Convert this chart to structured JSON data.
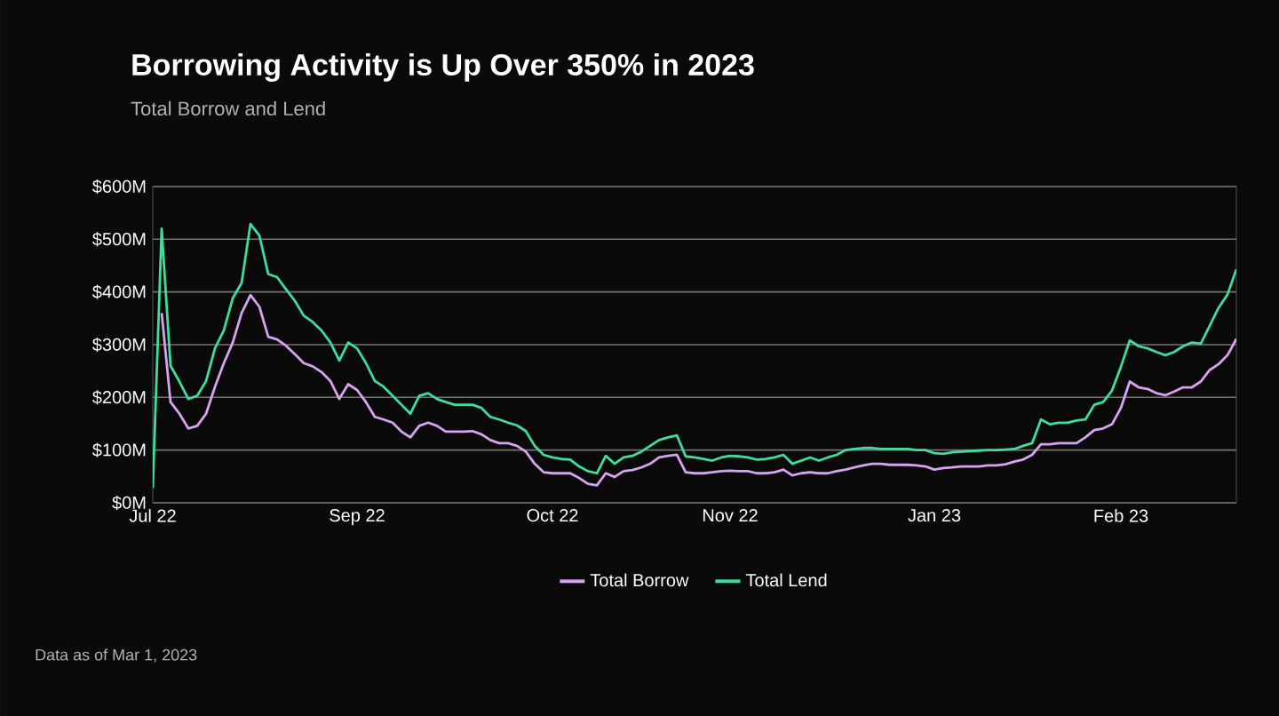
{
  "chart_data": {
    "type": "line",
    "title": "Borrowing Activity is Up Over 350% in 2023",
    "subtitle": "Total Borrow and Lend",
    "categories": [
      "Jul 22",
      null,
      null,
      null,
      null,
      null,
      null,
      null,
      null,
      null,
      null,
      null,
      null,
      null,
      null,
      null,
      null,
      null,
      null,
      null,
      null,
      null,
      null,
      "Sep 22",
      null,
      null,
      null,
      null,
      null,
      null,
      null,
      null,
      null,
      null,
      null,
      null,
      null,
      null,
      null,
      null,
      null,
      null,
      null,
      null,
      null,
      "Oct 22",
      null,
      null,
      null,
      null,
      null,
      null,
      null,
      null,
      null,
      null,
      null,
      null,
      null,
      null,
      null,
      null,
      null,
      null,
      null,
      "Nov 22",
      null,
      null,
      null,
      null,
      null,
      null,
      null,
      null,
      null,
      null,
      null,
      null,
      null,
      null,
      null,
      null,
      null,
      null,
      null,
      null,
      null,
      null,
      "Jan 23",
      null,
      null,
      null,
      null,
      null,
      null,
      null,
      null,
      null,
      null,
      null,
      null,
      null,
      null,
      null,
      null,
      null,
      null,
      null,
      null,
      "Feb 23",
      null,
      null,
      null,
      null,
      null,
      null,
      null,
      null,
      null,
      null,
      null,
      null,
      null
    ],
    "series": [
      {
        "name": "Total Borrow",
        "color": "#d7a3f0",
        "values": [
          null,
          360,
          191,
          169,
          141,
          146,
          169,
          220,
          265,
          304,
          360,
          394,
          372,
          315,
          310,
          298,
          282,
          265,
          259,
          248,
          231,
          197,
          225,
          214,
          191,
          163,
          158,
          152,
          135,
          124,
          146,
          152,
          146,
          135,
          135,
          135,
          136,
          130,
          119,
          113,
          113,
          108,
          97,
          74,
          58,
          56,
          56,
          56,
          47,
          36,
          33,
          56,
          49,
          60,
          62,
          67,
          74,
          86,
          89,
          91,
          58,
          56,
          56,
          58,
          60,
          61,
          60,
          60,
          56,
          56,
          58,
          63,
          52,
          56,
          58,
          56,
          56,
          60,
          63,
          67,
          71,
          74,
          74,
          72,
          72,
          72,
          71,
          69,
          63,
          66,
          67,
          69,
          69,
          69,
          71,
          71,
          73,
          78,
          82,
          91,
          111,
          111,
          113,
          113,
          113,
          124,
          138,
          141,
          149,
          180,
          230,
          219,
          216,
          208,
          204,
          211,
          219,
          219,
          230,
          252,
          263,
          280,
          311
        ]
      },
      {
        "name": "Total Lend",
        "color": "#3fdc9a",
        "values": [
          28,
          520,
          260,
          230,
          197,
          203,
          231,
          293,
          327,
          388,
          417,
          529,
          507,
          434,
          428,
          405,
          383,
          355,
          343,
          327,
          304,
          270,
          304,
          293,
          265,
          231,
          220,
          203,
          186,
          169,
          203,
          208,
          197,
          191,
          186,
          186,
          186,
          180,
          163,
          158,
          152,
          147,
          136,
          108,
          91,
          86,
          83,
          82,
          69,
          60,
          56,
          89,
          74,
          86,
          89,
          97,
          108,
          119,
          124,
          128,
          88,
          86,
          83,
          80,
          86,
          89,
          88,
          86,
          82,
          83,
          86,
          91,
          74,
          80,
          86,
          80,
          86,
          91,
          100,
          102,
          104,
          104,
          102,
          102,
          102,
          102,
          100,
          100,
          94,
          93,
          96,
          97,
          98,
          99,
          100,
          100,
          101,
          102,
          108,
          113,
          158,
          149,
          152,
          152,
          156,
          158,
          186,
          191,
          213,
          258,
          308,
          297,
          293,
          286,
          280,
          286,
          297,
          304,
          302,
          336,
          370,
          395,
          443
        ]
      }
    ],
    "ylim": [
      0,
      600
    ],
    "yticks": [
      {
        "value": 0,
        "label": "$0M"
      },
      {
        "value": 100,
        "label": "$100M"
      },
      {
        "value": 200,
        "label": "$200M"
      },
      {
        "value": 300,
        "label": "$300M"
      },
      {
        "value": 400,
        "label": "$400M"
      },
      {
        "value": 500,
        "label": "$500M"
      },
      {
        "value": 600,
        "label": "$600M"
      }
    ],
    "grid": "y",
    "legend": "bottom",
    "marker": "none",
    "line_style": "solid",
    "annotations": [
      "Data as of Mar 1, 2023"
    ]
  }
}
